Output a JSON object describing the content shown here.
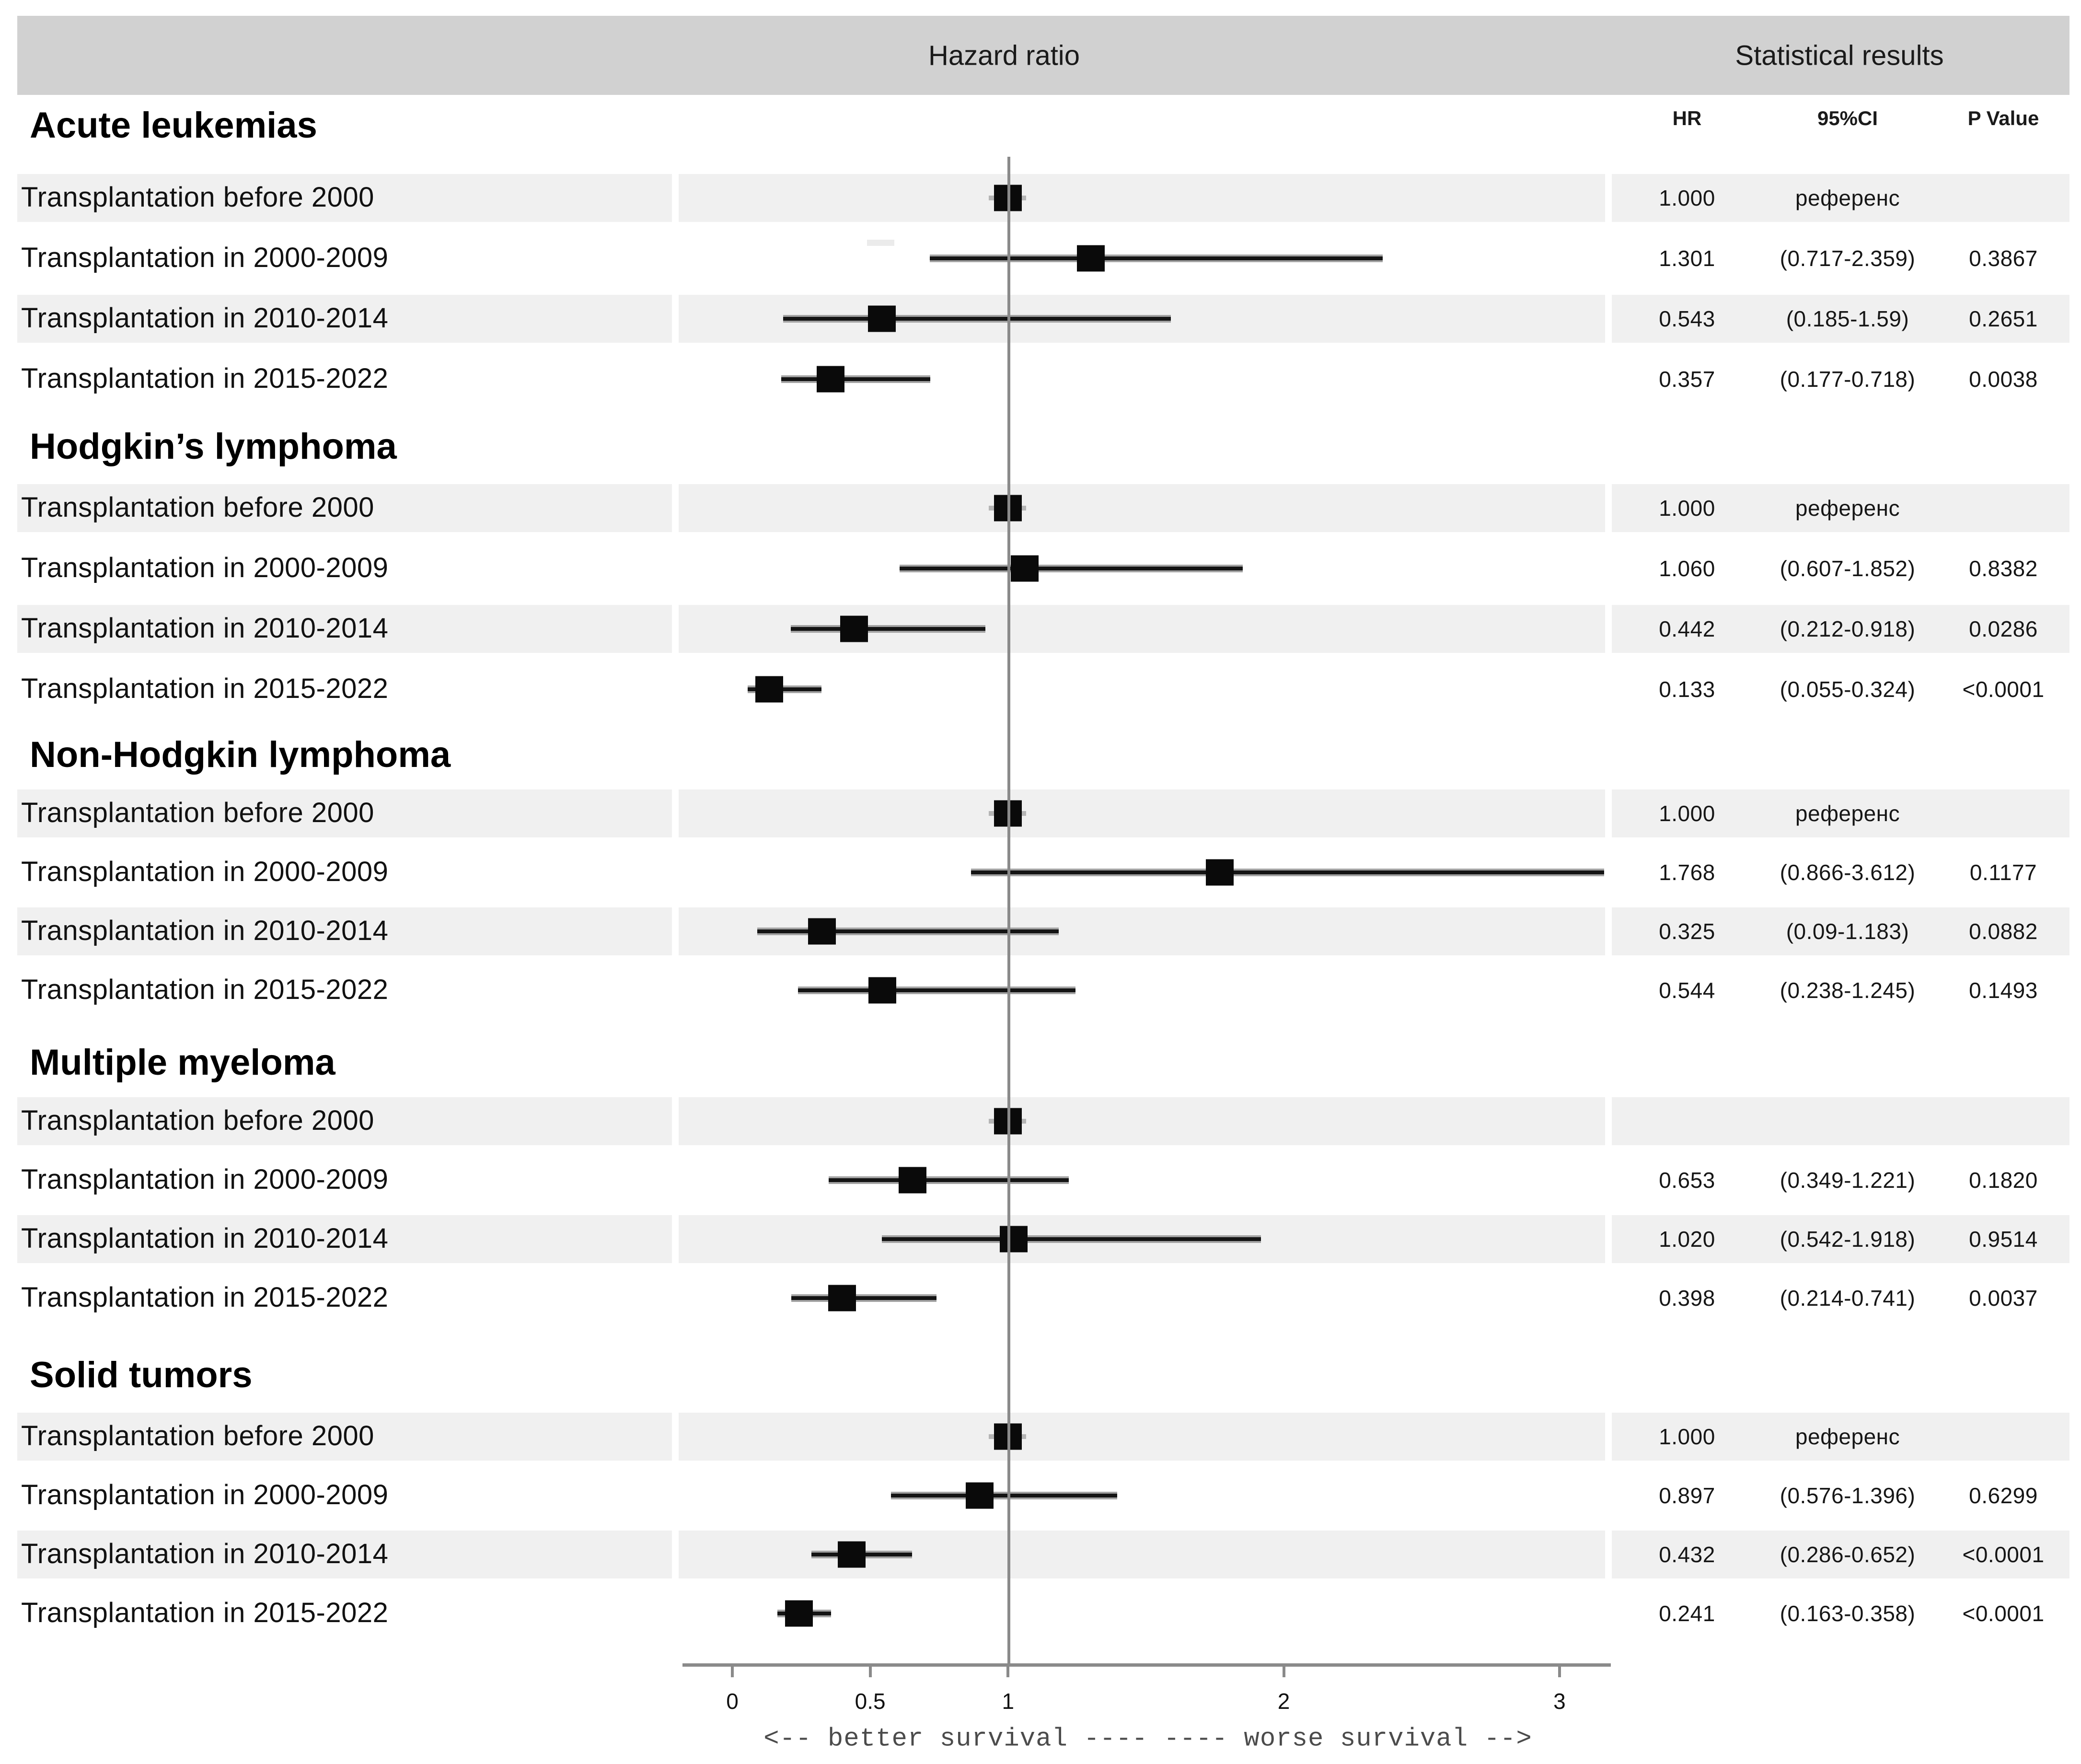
{
  "header": {
    "plot_title": "Hazard ratio",
    "stats_title": "Statistical results"
  },
  "columns": {
    "hr": "HR",
    "ci": "95%CI",
    "p": "P Value"
  },
  "axis": {
    "tick_values": [
      0,
      0.5,
      1,
      2,
      3
    ],
    "tick_labels": [
      "0",
      "0.5",
      "1",
      "2",
      "3"
    ],
    "caption": "<-- better survival ----  ---- worse survival -->",
    "reference_line": 1
  },
  "colors": {
    "header_band": "#d1d1d1",
    "row_band": "#f0f0f0",
    "marker": "#0a0a0a",
    "axis_gray": "#8a8a8a",
    "ci_edge_gray": "#a3a3a3"
  },
  "chart_data": {
    "type": "forest",
    "title": "Hazard ratio",
    "stats_title": "Statistical results",
    "xlabel": "<-- better survival ----  ---- worse survival -->",
    "x_range": [
      0,
      3.2
    ],
    "reference_value": 1,
    "columns": [
      "HR",
      "95%CI",
      "P Value"
    ],
    "groups": [
      {
        "name": "Acute leukemias",
        "rows": [
          {
            "label": "Transplantation before 2000",
            "hr": 1.0,
            "ci": null,
            "hr_text": "1.000",
            "ci_text": "референс",
            "p_text": "",
            "shaded": true,
            "reference": true
          },
          {
            "label": "Transplantation in 2000-2009",
            "hr": 1.301,
            "ci": [
              0.717,
              2.359
            ],
            "hr_text": "1.301",
            "ci_text": "(0.717-2.359)",
            "p_text": "0.3867",
            "shaded": false,
            "reference": false
          },
          {
            "label": "Transplantation in 2010-2014",
            "hr": 0.543,
            "ci": [
              0.185,
              1.59
            ],
            "hr_text": "0.543",
            "ci_text": "(0.185-1.59)",
            "p_text": "0.2651",
            "shaded": true,
            "reference": false
          },
          {
            "label": "Transplantation in 2015-2022",
            "hr": 0.357,
            "ci": [
              0.177,
              0.718
            ],
            "hr_text": "0.357",
            "ci_text": "(0.177-0.718)",
            "p_text": "0.0038",
            "shaded": false,
            "reference": false
          }
        ]
      },
      {
        "name": "Hodgkin’s lymphoma",
        "rows": [
          {
            "label": "Transplantation before 2000",
            "hr": 1.0,
            "ci": null,
            "hr_text": "1.000",
            "ci_text": "референс",
            "p_text": "",
            "shaded": true,
            "reference": true
          },
          {
            "label": "Transplantation in 2000-2009",
            "hr": 1.06,
            "ci": [
              0.607,
              1.852
            ],
            "hr_text": "1.060",
            "ci_text": "(0.607-1.852)",
            "p_text": "0.8382",
            "shaded": false,
            "reference": false
          },
          {
            "label": "Transplantation in 2010-2014",
            "hr": 0.442,
            "ci": [
              0.212,
              0.918
            ],
            "hr_text": "0.442",
            "ci_text": "(0.212-0.918)",
            "p_text": "0.0286",
            "shaded": true,
            "reference": false
          },
          {
            "label": "Transplantation in 2015-2022",
            "hr": 0.133,
            "ci": [
              0.055,
              0.324
            ],
            "hr_text": "0.133",
            "ci_text": "(0.055-0.324)",
            "p_text": "<0.0001",
            "shaded": false,
            "reference": false
          }
        ]
      },
      {
        "name": "Non-Hodgkin lymphoma",
        "rows": [
          {
            "label": "Transplantation before 2000",
            "hr": 1.0,
            "ci": null,
            "hr_text": "1.000",
            "ci_text": "референс",
            "p_text": "",
            "shaded": true,
            "reference": true
          },
          {
            "label": "Transplantation in 2000-2009",
            "hr": 1.768,
            "ci": [
              0.866,
              3.612
            ],
            "hr_text": "1.768",
            "ci_text": "(0.866-3.612)",
            "p_text": "0.1177",
            "shaded": false,
            "reference": false
          },
          {
            "label": "Transplantation in 2010-2014",
            "hr": 0.325,
            "ci": [
              0.09,
              1.183
            ],
            "hr_text": "0.325",
            "ci_text": "(0.09-1.183)",
            "p_text": "0.0882",
            "shaded": true,
            "reference": false
          },
          {
            "label": "Transplantation in 2015-2022",
            "hr": 0.544,
            "ci": [
              0.238,
              1.245
            ],
            "hr_text": "0.544",
            "ci_text": "(0.238-1.245)",
            "p_text": "0.1493",
            "shaded": false,
            "reference": false
          }
        ]
      },
      {
        "name": "Multiple myeloma",
        "rows": [
          {
            "label": "Transplantation before 2000",
            "hr": 1.0,
            "ci": null,
            "hr_text": "",
            "ci_text": "",
            "p_text": "",
            "shaded": true,
            "reference": true
          },
          {
            "label": "Transplantation in 2000-2009",
            "hr": 0.653,
            "ci": [
              0.349,
              1.221
            ],
            "hr_text": "0.653",
            "ci_text": "(0.349-1.221)",
            "p_text": "0.1820",
            "shaded": false,
            "reference": false
          },
          {
            "label": "Transplantation in 2010-2014",
            "hr": 1.02,
            "ci": [
              0.542,
              1.918
            ],
            "hr_text": "1.020",
            "ci_text": "(0.542-1.918)",
            "p_text": "0.9514",
            "shaded": true,
            "reference": false
          },
          {
            "label": "Transplantation in 2015-2022",
            "hr": 0.398,
            "ci": [
              0.214,
              0.741
            ],
            "hr_text": "0.398",
            "ci_text": "(0.214-0.741)",
            "p_text": "0.0037",
            "shaded": false,
            "reference": false
          }
        ]
      },
      {
        "name": "Solid tumors",
        "rows": [
          {
            "label": "Transplantation before 2000",
            "hr": 1.0,
            "ci": null,
            "hr_text": "1.000",
            "ci_text": "референс",
            "p_text": "",
            "shaded": true,
            "reference": true
          },
          {
            "label": "Transplantation in 2000-2009",
            "hr": 0.897,
            "ci": [
              0.576,
              1.396
            ],
            "hr_text": "0.897",
            "ci_text": "(0.576-1.396)",
            "p_text": "0.6299",
            "shaded": false,
            "reference": false
          },
          {
            "label": "Transplantation in 2010-2014",
            "hr": 0.432,
            "ci": [
              0.286,
              0.652
            ],
            "hr_text": "0.432",
            "ci_text": "(0.286-0.652)",
            "p_text": "<0.0001",
            "shaded": true,
            "reference": false
          },
          {
            "label": "Transplantation in 2015-2022",
            "hr": 0.241,
            "ci": [
              0.163,
              0.358
            ],
            "hr_text": "0.241",
            "ci_text": "(0.163-0.358)",
            "p_text": "<0.0001",
            "shaded": false,
            "reference": false
          }
        ]
      }
    ]
  }
}
